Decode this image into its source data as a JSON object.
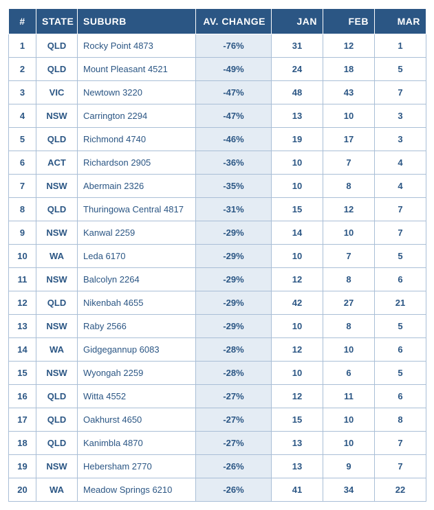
{
  "table": {
    "type": "table",
    "header_bg": "#2b5684",
    "header_fg": "#ffffff",
    "cell_border": "#a9bed6",
    "cell_fg": "#2b5684",
    "highlight_bg": "#e4ecf4",
    "columns": [
      {
        "key": "rank",
        "label": "#",
        "width": 40,
        "align": "center"
      },
      {
        "key": "state",
        "label": "STATE",
        "width": 60,
        "align": "center"
      },
      {
        "key": "suburb",
        "label": "SUBURB",
        "width": 172,
        "align": "left"
      },
      {
        "key": "change",
        "label": "AV. CHANGE",
        "width": 110,
        "align": "right",
        "highlight": true
      },
      {
        "key": "jan",
        "label": "JAN",
        "width": 75,
        "align": "right"
      },
      {
        "key": "feb",
        "label": "FEB",
        "width": 75,
        "align": "right"
      },
      {
        "key": "mar",
        "label": "MAR",
        "width": 75,
        "align": "right"
      }
    ],
    "rows": [
      {
        "rank": "1",
        "state": "QLD",
        "suburb": "Rocky Point  4873",
        "change": "-76%",
        "jan": "31",
        "feb": "12",
        "mar": "1"
      },
      {
        "rank": "2",
        "state": "QLD",
        "suburb": "Mount Pleasant  4521",
        "change": "-49%",
        "jan": "24",
        "feb": "18",
        "mar": "5"
      },
      {
        "rank": "3",
        "state": "VIC",
        "suburb": "Newtown  3220",
        "change": "-47%",
        "jan": "48",
        "feb": "43",
        "mar": "7"
      },
      {
        "rank": "4",
        "state": "NSW",
        "suburb": "Carrington  2294",
        "change": "-47%",
        "jan": "13",
        "feb": "10",
        "mar": "3"
      },
      {
        "rank": "5",
        "state": "QLD",
        "suburb": "Richmond  4740",
        "change": "-46%",
        "jan": "19",
        "feb": "17",
        "mar": "3"
      },
      {
        "rank": "6",
        "state": "ACT",
        "suburb": "Richardson 2905",
        "change": "-36%",
        "jan": "10",
        "feb": "7",
        "mar": "4"
      },
      {
        "rank": "7",
        "state": "NSW",
        "suburb": "Abermain 2326",
        "change": "-35%",
        "jan": "10",
        "feb": "8",
        "mar": "4"
      },
      {
        "rank": "8",
        "state": "QLD",
        "suburb": "Thuringowa Central 4817",
        "change": "-31%",
        "jan": "15",
        "feb": "12",
        "mar": "7"
      },
      {
        "rank": "9",
        "state": "NSW",
        "suburb": "Kanwal 2259",
        "change": "-29%",
        "jan": "14",
        "feb": "10",
        "mar": "7"
      },
      {
        "rank": "10",
        "state": "WA",
        "suburb": "Leda 6170",
        "change": "-29%",
        "jan": "10",
        "feb": "7",
        "mar": "5"
      },
      {
        "rank": "11",
        "state": "NSW",
        "suburb": "Balcolyn 2264",
        "change": "-29%",
        "jan": "12",
        "feb": "8",
        "mar": "6"
      },
      {
        "rank": "12",
        "state": "QLD",
        "suburb": "Nikenbah 4655",
        "change": "-29%",
        "jan": "42",
        "feb": "27",
        "mar": "21"
      },
      {
        "rank": "13",
        "state": "NSW",
        "suburb": "Raby 2566",
        "change": "-29%",
        "jan": "10",
        "feb": "8",
        "mar": "5"
      },
      {
        "rank": "14",
        "state": "WA",
        "suburb": "Gidgegannup 6083",
        "change": "-28%",
        "jan": "12",
        "feb": "10",
        "mar": "6"
      },
      {
        "rank": "15",
        "state": "NSW",
        "suburb": "Wyongah 2259",
        "change": "-28%",
        "jan": "10",
        "feb": "6",
        "mar": "5"
      },
      {
        "rank": "16",
        "state": "QLD",
        "suburb": "Witta 4552",
        "change": "-27%",
        "jan": "12",
        "feb": "11",
        "mar": "6"
      },
      {
        "rank": "17",
        "state": "QLD",
        "suburb": "Oakhurst  4650",
        "change": "-27%",
        "jan": "15",
        "feb": "10",
        "mar": "8"
      },
      {
        "rank": "18",
        "state": "QLD",
        "suburb": "Kanimbla  4870",
        "change": "-27%",
        "jan": "13",
        "feb": "10",
        "mar": "7"
      },
      {
        "rank": "19",
        "state": "NSW",
        "suburb": "Hebersham 2770",
        "change": "-26%",
        "jan": "13",
        "feb": "9",
        "mar": "7"
      },
      {
        "rank": "20",
        "state": "WA",
        "suburb": "Meadow Springs 6210",
        "change": "-26%",
        "jan": "41",
        "feb": "34",
        "mar": "22"
      }
    ]
  }
}
